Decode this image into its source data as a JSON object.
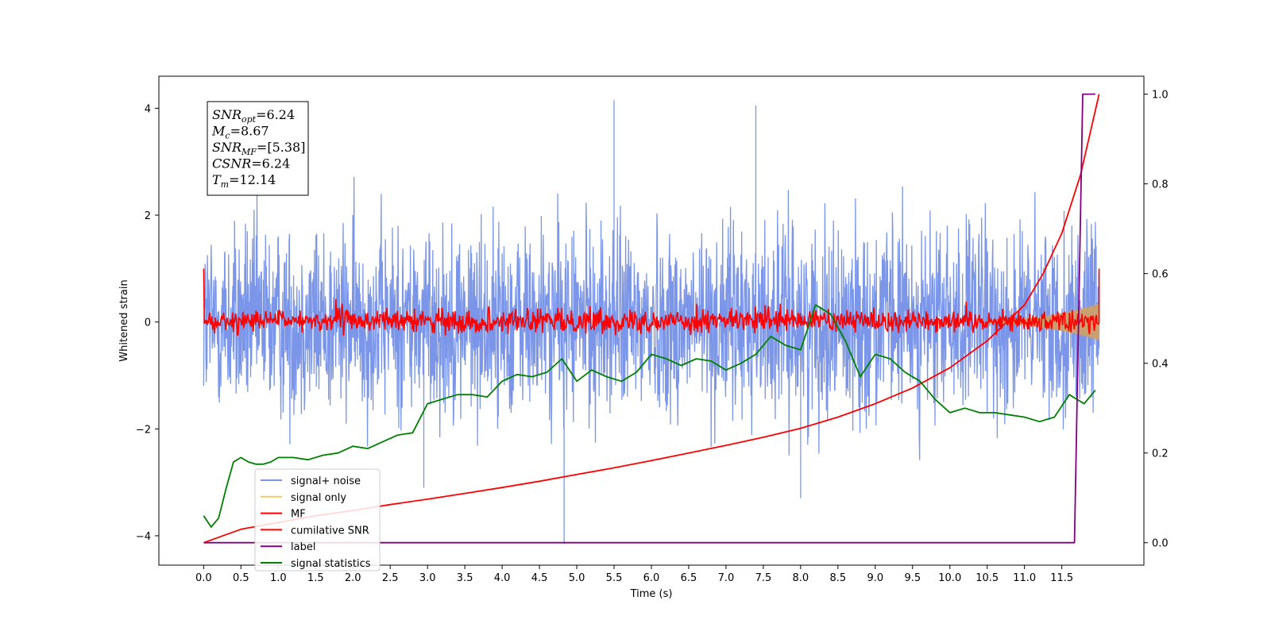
{
  "chart_data": {
    "type": "line",
    "title": "",
    "xlabel": "Time (s)",
    "ylabel": "Whitened strain",
    "xlim": [
      -0.6,
      12.6
    ],
    "ylim": [
      -4.55,
      4.6
    ],
    "y2lim": [
      -0.05,
      1.04
    ],
    "x_ticks": [
      0.0,
      0.5,
      1.0,
      1.5,
      2.0,
      2.5,
      3.0,
      3.5,
      4.0,
      4.5,
      5.0,
      5.5,
      6.0,
      6.5,
      7.0,
      7.5,
      8.0,
      8.5,
      9.0,
      9.5,
      10.0,
      10.5,
      11.0,
      11.5
    ],
    "x_tick_labels": [
      "0.0",
      "0.5",
      "1.0",
      "1.5",
      "2.0",
      "2.5",
      "3.0",
      "3.5",
      "4.0",
      "4.5",
      "5.0",
      "5.5",
      "6.0",
      "6.5",
      "7.0",
      "7.5",
      "8.0",
      "8.5",
      "9.0",
      "9.5",
      "10.0",
      "10.5",
      "11.0",
      "11.5"
    ],
    "y_ticks": [
      4,
      2,
      0,
      -2,
      -4
    ],
    "y_tick_labels": [
      "4",
      "2",
      "0",
      "−2",
      "−4"
    ],
    "y2_ticks": [
      1.0,
      0.8,
      0.6,
      0.4,
      0.2,
      0.0
    ],
    "y2_tick_labels": [
      "1.0",
      "0.8",
      "0.6",
      "0.4",
      "0.2",
      "0.0"
    ],
    "grid": false,
    "legend_position": "lower-left",
    "annotation": [
      {
        "base": "SNR",
        "sub": "opt",
        "value": "=6.24"
      },
      {
        "base": "M",
        "sub": "c",
        "value": "=8.67"
      },
      {
        "base": "SNR",
        "sub": "MF",
        "value": "=[5.38]"
      },
      {
        "base": "CSNR",
        "sub": "",
        "value": "=6.24"
      },
      {
        "base": "T",
        "sub": "m",
        "value": "=12.14"
      }
    ],
    "series": [
      {
        "name": "signal+ noise",
        "color": "#7b96e8",
        "axis": "left",
        "description_values": {
          "x_range": [
            0.0,
            12.0
          ],
          "band_min": -2.8,
          "band_max": 2.9,
          "spikes": [
            [
              5.5,
              4.15
            ],
            [
              7.4,
              4.05
            ],
            [
              4.83,
              -4.15
            ],
            [
              2.95,
              -3.1
            ],
            [
              8.0,
              -3.3
            ]
          ]
        }
      },
      {
        "name": "signal only",
        "color": "#f7c96b",
        "axis": "left",
        "description_values": {
          "x_range": [
            10.5,
            12.0
          ],
          "amplitude_start": 0.03,
          "amplitude_end": 0.35
        }
      },
      {
        "name": "MF",
        "color": "#ff0000",
        "axis": "left",
        "description_values": {
          "x_range": [
            0.0,
            12.0
          ],
          "start": 1.0,
          "end": 1.0,
          "band": [
            -0.3,
            0.35
          ]
        }
      },
      {
        "name": "cumilative SNR",
        "color": "#ff0000",
        "axis": "right",
        "x": [
          0.0,
          0.5,
          1.0,
          1.5,
          2.0,
          2.5,
          3.0,
          3.5,
          4.0,
          4.5,
          5.0,
          5.5,
          6.0,
          6.5,
          7.0,
          7.5,
          8.0,
          8.5,
          9.0,
          9.5,
          10.0,
          10.5,
          11.0,
          11.25,
          11.5,
          11.75,
          12.0
        ],
        "values": [
          0.0,
          0.03,
          0.045,
          0.06,
          0.072,
          0.085,
          0.097,
          0.11,
          0.123,
          0.137,
          0.152,
          0.167,
          0.183,
          0.2,
          0.217,
          0.235,
          0.255,
          0.28,
          0.31,
          0.345,
          0.39,
          0.45,
          0.53,
          0.6,
          0.69,
          0.82,
          1.0
        ]
      },
      {
        "name": "label",
        "color": "#800080",
        "axis": "right",
        "x": [
          0.0,
          11.67,
          11.78,
          11.95
        ],
        "values": [
          0.0,
          0.0,
          1.0,
          1.0
        ]
      },
      {
        "name": "signal statistics",
        "color": "#008000",
        "axis": "right",
        "x": [
          0.0,
          0.1,
          0.2,
          0.3,
          0.4,
          0.5,
          0.6,
          0.7,
          0.8,
          0.9,
          1.0,
          1.2,
          1.4,
          1.6,
          1.8,
          2.0,
          2.2,
          2.4,
          2.6,
          2.8,
          3.0,
          3.2,
          3.4,
          3.6,
          3.8,
          4.0,
          4.2,
          4.4,
          4.6,
          4.8,
          5.0,
          5.2,
          5.4,
          5.6,
          5.8,
          6.0,
          6.2,
          6.4,
          6.6,
          6.8,
          7.0,
          7.2,
          7.4,
          7.6,
          7.8,
          8.0,
          8.2,
          8.4,
          8.6,
          8.8,
          9.0,
          9.2,
          9.4,
          9.6,
          9.8,
          10.0,
          10.2,
          10.4,
          10.6,
          10.8,
          11.0,
          11.2,
          11.4,
          11.6,
          11.8,
          11.95
        ],
        "values": [
          0.06,
          0.035,
          0.055,
          0.12,
          0.18,
          0.19,
          0.18,
          0.175,
          0.175,
          0.18,
          0.19,
          0.19,
          0.185,
          0.195,
          0.2,
          0.215,
          0.21,
          0.225,
          0.24,
          0.245,
          0.31,
          0.32,
          0.33,
          0.33,
          0.325,
          0.36,
          0.375,
          0.37,
          0.38,
          0.41,
          0.36,
          0.385,
          0.37,
          0.36,
          0.38,
          0.42,
          0.41,
          0.395,
          0.41,
          0.405,
          0.385,
          0.4,
          0.42,
          0.46,
          0.44,
          0.43,
          0.53,
          0.51,
          0.45,
          0.37,
          0.42,
          0.41,
          0.38,
          0.36,
          0.32,
          0.29,
          0.3,
          0.29,
          0.29,
          0.285,
          0.28,
          0.27,
          0.28,
          0.33,
          0.31,
          0.34
        ]
      }
    ]
  }
}
